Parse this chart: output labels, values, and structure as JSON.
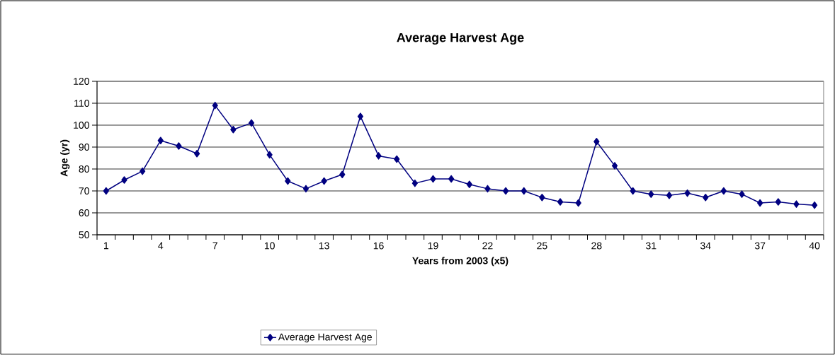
{
  "chart_data": {
    "type": "line",
    "title": "Average Harvest Age",
    "xlabel": "Years from 2003 (x5)",
    "ylabel": "Age (yr)",
    "categories": [
      "1",
      null,
      null,
      "4",
      null,
      null,
      "7",
      null,
      null,
      "10",
      null,
      null,
      "13",
      null,
      null,
      "16",
      null,
      null,
      "19",
      null,
      null,
      "22",
      null,
      null,
      "25",
      null,
      null,
      "28",
      null,
      null,
      "31",
      null,
      null,
      "34",
      null,
      null,
      "37",
      null,
      null,
      "40"
    ],
    "series": [
      {
        "name": "Average Harvest Age",
        "color": "#000080",
        "values": [
          70,
          75,
          79,
          93,
          90.5,
          87,
          109,
          98,
          101,
          86.5,
          74.5,
          71,
          74.5,
          77.5,
          104,
          86,
          84.5,
          73.5,
          75.5,
          75.5,
          73,
          71,
          70,
          70,
          67,
          65,
          64.5,
          92.5,
          81.5,
          70,
          68.5,
          68,
          69,
          67,
          70,
          68.5,
          64.5,
          65,
          64,
          63.5
        ]
      }
    ],
    "ylim": [
      50,
      120
    ],
    "yticks": [
      50,
      60,
      70,
      80,
      90,
      100,
      110,
      120
    ],
    "grid": "y",
    "legend": "bottom",
    "marker": "diamond",
    "line_style": "solid"
  }
}
